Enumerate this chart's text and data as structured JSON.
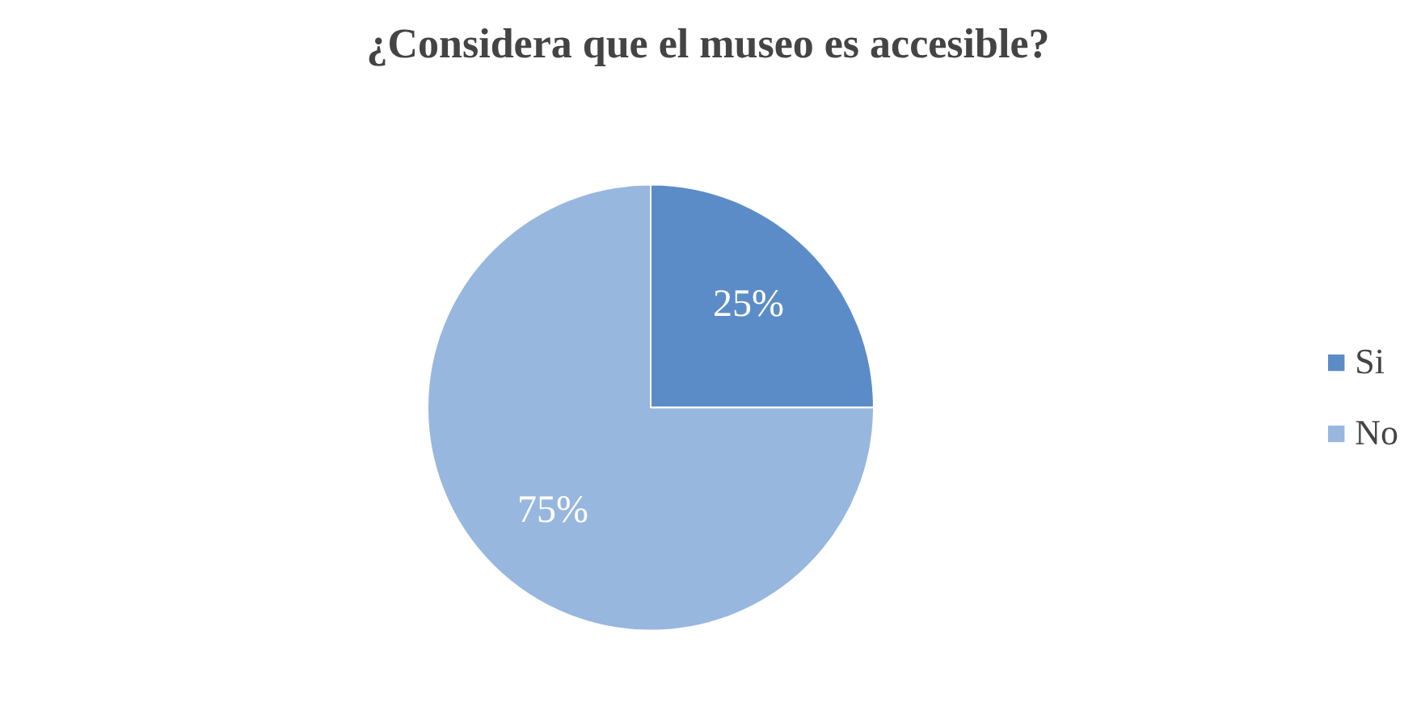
{
  "chart_data": {
    "type": "pie",
    "title": "¿Considera que el museo es accesible?",
    "categories": [
      "Si",
      "No"
    ],
    "values": [
      25,
      75
    ],
    "colors": [
      "#5b8cc7",
      "#98b7df"
    ],
    "value_labels": [
      "25%",
      "75%"
    ],
    "legend": "right"
  }
}
